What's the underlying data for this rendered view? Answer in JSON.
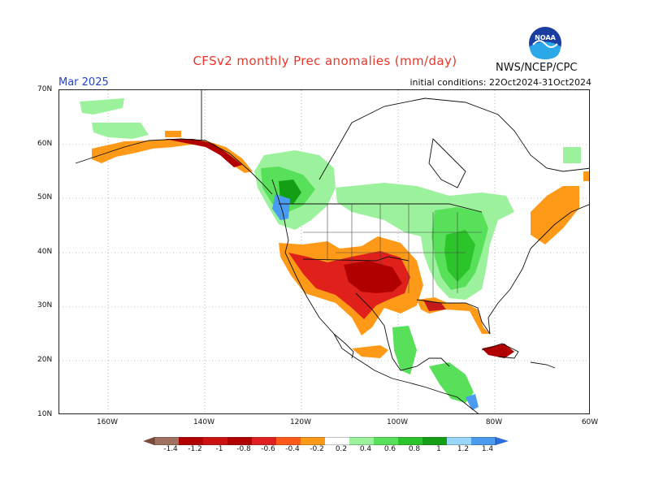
{
  "title": "CFSv2 monthly Prec anomalies (mm/day)",
  "org": "NWS/NCEP/CPC",
  "logo_text": "NOAA",
  "target_month": "Mar 2025",
  "initial_conditions": "initial conditions: 22Oct2024-31Oct2024",
  "map": {
    "lat_labels": [
      "70N",
      "60N",
      "50N",
      "40N",
      "30N",
      "20N",
      "10N"
    ],
    "lon_labels": [
      "160W",
      "140W",
      "120W",
      "100W",
      "80W",
      "60W"
    ],
    "lat_range": [
      10,
      70
    ],
    "lon_range": [
      -170,
      -60
    ],
    "gridlines": true
  },
  "legend": {
    "labels": [
      "-1.4",
      "-1.2",
      "-1",
      "-0.8",
      "-0.6",
      "-0.4",
      "-0.2",
      "0.2",
      "0.4",
      "0.6",
      "0.8",
      "1",
      "1.2",
      "1.4"
    ],
    "colors": [
      "#7b4a3a",
      "#a07060",
      "#cc1111",
      "#b00000",
      "#e02020",
      "#ff5a1a",
      "#ff9a18",
      "#ffffff",
      "#9cf29c",
      "#59e05a",
      "#2bc42b",
      "#149e14",
      "#9ad6fa",
      "#4a9cf0",
      "#2a6ee0"
    ]
  },
  "colors": {
    "dry_strong": "#c41a1a",
    "dry": "#ff9a18",
    "wet": "#59e05a",
    "wet_strong": "#2a6ee0"
  }
}
